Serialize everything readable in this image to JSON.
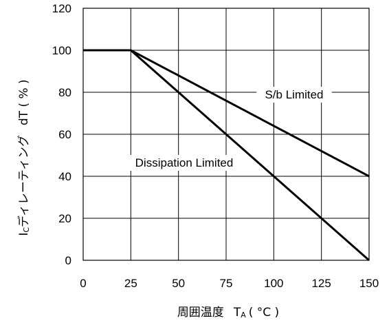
{
  "chart_data": {
    "type": "line",
    "xlabel": {
      "main": "周囲温度",
      "symbol": "T",
      "subscript": "A",
      "unit": "( °C )"
    },
    "ylabel": {
      "symbol": "I",
      "subscript": "C",
      "main": "ディレーティング",
      "suffix": "dT ( % )"
    },
    "xlim": [
      0,
      150
    ],
    "ylim": [
      0,
      120
    ],
    "x_ticks": [
      "0",
      "25",
      "50",
      "75",
      "100",
      "125",
      "150"
    ],
    "y_ticks": [
      "0",
      "20",
      "40",
      "60",
      "80",
      "100",
      "120"
    ],
    "grid": true,
    "series": [
      {
        "name": "S/b Limited",
        "x": [
          0,
          25,
          150
        ],
        "y": [
          100,
          100,
          40
        ]
      },
      {
        "name": "Dissipation Limited",
        "x": [
          0,
          25,
          150
        ],
        "y": [
          100,
          100,
          0
        ]
      }
    ]
  }
}
